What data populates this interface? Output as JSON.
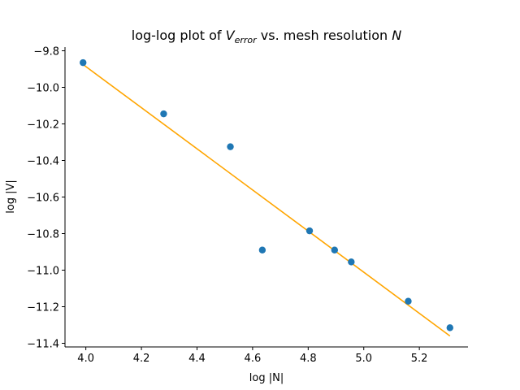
{
  "chart_data": {
    "type": "scatter",
    "title_parts": {
      "prefix": "log-log plot of ",
      "var_main": "V",
      "var_sub": "error",
      "middle": " vs. mesh resolution ",
      "var_end": "N"
    },
    "xlabel": "log |N|",
    "ylabel": "log |V|",
    "xlim": [
      3.925,
      5.375
    ],
    "ylim": [
      -11.42,
      -9.78
    ],
    "xticks": [
      4.0,
      4.2,
      4.4,
      4.6,
      4.8,
      5.0,
      5.2
    ],
    "xtick_labels": [
      "4.0",
      "4.2",
      "4.4",
      "4.6",
      "4.8",
      "5.0",
      "5.2"
    ],
    "yticks": [
      -9.8,
      -10.0,
      -10.2,
      -10.4,
      -10.6,
      -10.8,
      -11.0,
      -11.2,
      -11.4
    ],
    "ytick_labels": [
      "−9.8",
      "−10.0",
      "−10.2",
      "−10.4",
      "−10.6",
      "−10.8",
      "−11.0",
      "−11.2",
      "−11.4"
    ],
    "grid": false,
    "series": [
      {
        "kind": "points",
        "color": "#1f77b4",
        "x": [
          3.99,
          4.28,
          4.52,
          4.635,
          4.805,
          4.895,
          4.955,
          5.16,
          5.31
        ],
        "y": [
          -9.865,
          -10.145,
          -10.325,
          -10.89,
          -10.785,
          -10.89,
          -10.955,
          -11.17,
          -11.315
        ]
      },
      {
        "kind": "fit-line",
        "color": "#ffa500",
        "x": [
          3.99,
          5.31
        ],
        "y": [
          -9.875,
          -11.36
        ]
      }
    ]
  }
}
